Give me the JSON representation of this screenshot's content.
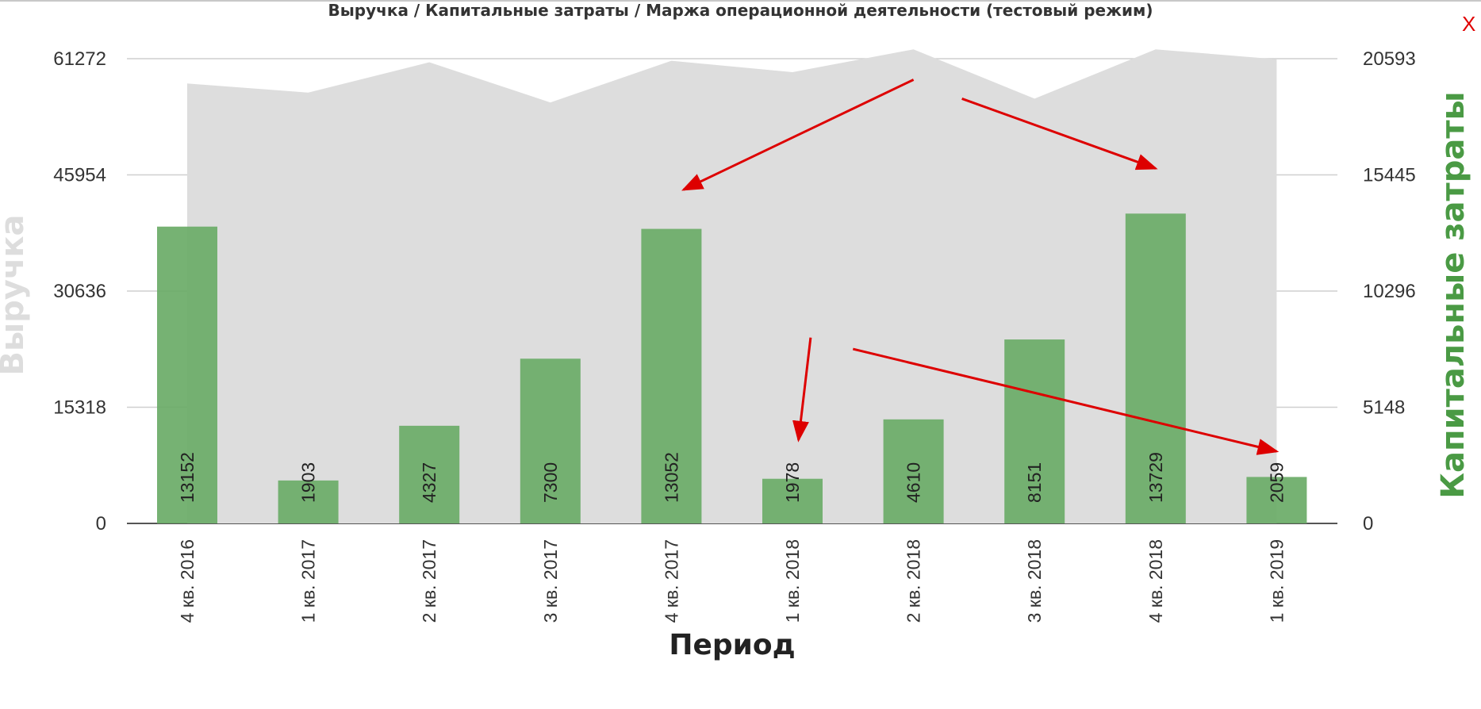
{
  "chart_data": {
    "type": "bar",
    "title": "Выручка / Капитальные затраты / Маржа операционной деятельности (тестовый режим)",
    "xlabel": "Период",
    "ylabel_left": "Выручка",
    "ylabel_right": "Капитальные затраты",
    "categories": [
      "4 кв. 2016",
      "1 кв. 2017",
      "2 кв. 2017",
      "3 кв. 2017",
      "4 кв. 2017",
      "1 кв. 2018",
      "2 кв. 2018",
      "3 кв. 2018",
      "4 кв. 2018",
      "1 кв. 2019"
    ],
    "left_ticks": [
      "0",
      "15318",
      "30636",
      "45954",
      "61272"
    ],
    "right_ticks": [
      "0",
      "5148",
      "10296",
      "15445",
      "20593"
    ],
    "ylim_left": [
      0,
      61272
    ],
    "ylim_right": [
      0,
      20593
    ],
    "grid": true,
    "series": [
      {
        "name": "Выручка",
        "chart_type": "area",
        "axis": "left",
        "color": "#dddddd",
        "values": [
          58000,
          56800,
          60800,
          55500,
          61000,
          59500,
          62500,
          56000,
          62500,
          61200
        ]
      },
      {
        "name": "Капитальные затраты",
        "chart_type": "bar",
        "axis": "right",
        "color": "#6aab67",
        "values": [
          13152,
          1903,
          4327,
          7300,
          13052,
          1978,
          4610,
          8151,
          13729,
          2059
        ],
        "data_labels": [
          "13152",
          "1903",
          "4327",
          "7300",
          "13052",
          "1978",
          "4610",
          "8151",
          "13729",
          "2059"
        ]
      }
    ],
    "annotations": [
      {
        "type": "arrow",
        "from": [
          6.0,
          58500
        ],
        "to": [
          4.1,
          44000
        ]
      },
      {
        "type": "arrow",
        "from": [
          6.4,
          56000
        ],
        "to": [
          8.0,
          46800
        ]
      },
      {
        "type": "arrow",
        "from": [
          5.15,
          24500
        ],
        "to": [
          5.05,
          11000
        ]
      },
      {
        "type": "arrow",
        "from": [
          5.5,
          23000
        ],
        "to": [
          9.0,
          9500
        ]
      }
    ]
  },
  "ui": {
    "close_label": "X",
    "arrow_color": "#dd0000"
  }
}
